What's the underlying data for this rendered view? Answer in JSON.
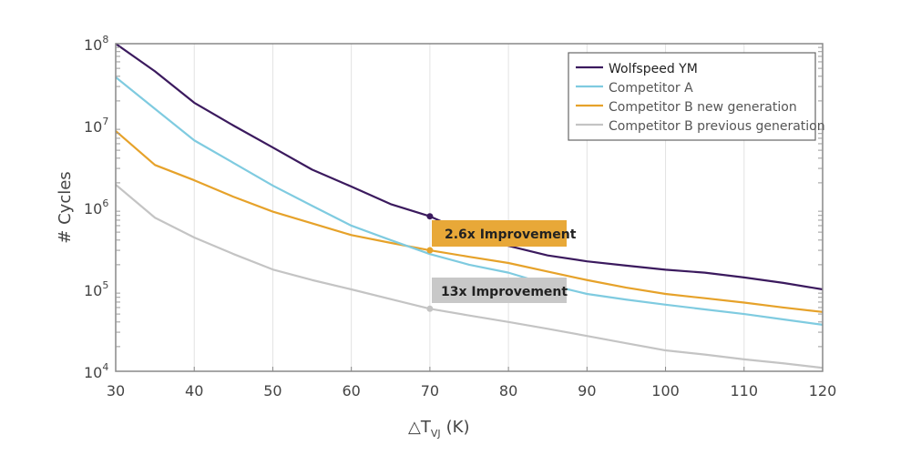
{
  "chart_data": {
    "type": "line",
    "title": "",
    "xlabel": "△T",
    "xlabel_sub": "VJ",
    "xlabel_unit": "(K)",
    "ylabel": "# Cycles",
    "xlim": [
      30,
      120
    ],
    "ylim": [
      10000,
      100000000
    ],
    "yscale": "log",
    "grid": "vertical",
    "legend_position": "top-right",
    "x_ticks": [
      30,
      40,
      50,
      60,
      70,
      80,
      90,
      100,
      110,
      120
    ],
    "y_ticks": [
      {
        "base": "10",
        "exp": "4",
        "value": 10000
      },
      {
        "base": "10",
        "exp": "5",
        "value": 100000
      },
      {
        "base": "10",
        "exp": "6",
        "value": 1000000
      },
      {
        "base": "10",
        "exp": "7",
        "value": 10000000
      },
      {
        "base": "10",
        "exp": "8",
        "value": 100000000
      }
    ],
    "x": [
      30,
      35,
      40,
      45,
      50,
      55,
      60,
      65,
      70,
      75,
      80,
      85,
      90,
      95,
      100,
      105,
      110,
      115,
      120
    ],
    "series": [
      {
        "name": "Wolfspeed YM",
        "color": "#3b1a5e",
        "values": [
          100000000,
          46000000,
          19000000,
          10000000,
          5400000,
          2900000,
          1800000,
          1100000,
          780000,
          480000,
          340000,
          260000,
          220000,
          195000,
          174000,
          160000,
          140000,
          120000,
          100000
        ]
      },
      {
        "name": "Competitor A",
        "color": "#7fcbe0",
        "values": [
          39000000,
          16000000,
          6600000,
          3500000,
          1850000,
          1050000,
          600000,
          400000,
          270000,
          200000,
          160000,
          115000,
          88000,
          75000,
          65000,
          57000,
          50000,
          43000,
          37000
        ]
      },
      {
        "name": "Competitor B new generation",
        "color": "#e6a22a",
        "values": [
          8600000,
          3300000,
          2150000,
          1350000,
          890000,
          640000,
          460000,
          370000,
          300000,
          250000,
          210000,
          165000,
          130000,
          105000,
          88000,
          78000,
          69000,
          60000,
          53000
        ]
      },
      {
        "name": "Competitor B previous generation",
        "color": "#c4c4c4",
        "values": [
          1900000,
          750000,
          430000,
          270000,
          175000,
          130000,
          100000,
          76000,
          58000,
          48000,
          40000,
          33000,
          27000,
          22000,
          18000,
          16000,
          14000,
          12500,
          11000
        ]
      }
    ],
    "annotations": [
      {
        "text": "2.6x Improvement",
        "x": 70,
        "color": "#e8a838",
        "markers": [
          {
            "series": 0,
            "value": 780000
          },
          {
            "series": 2,
            "value": 300000
          }
        ]
      },
      {
        "text": "13x Improvement",
        "x": 70,
        "color": "#c8c8c8",
        "markers": [
          {
            "series": 3,
            "value": 58000
          }
        ]
      }
    ]
  }
}
